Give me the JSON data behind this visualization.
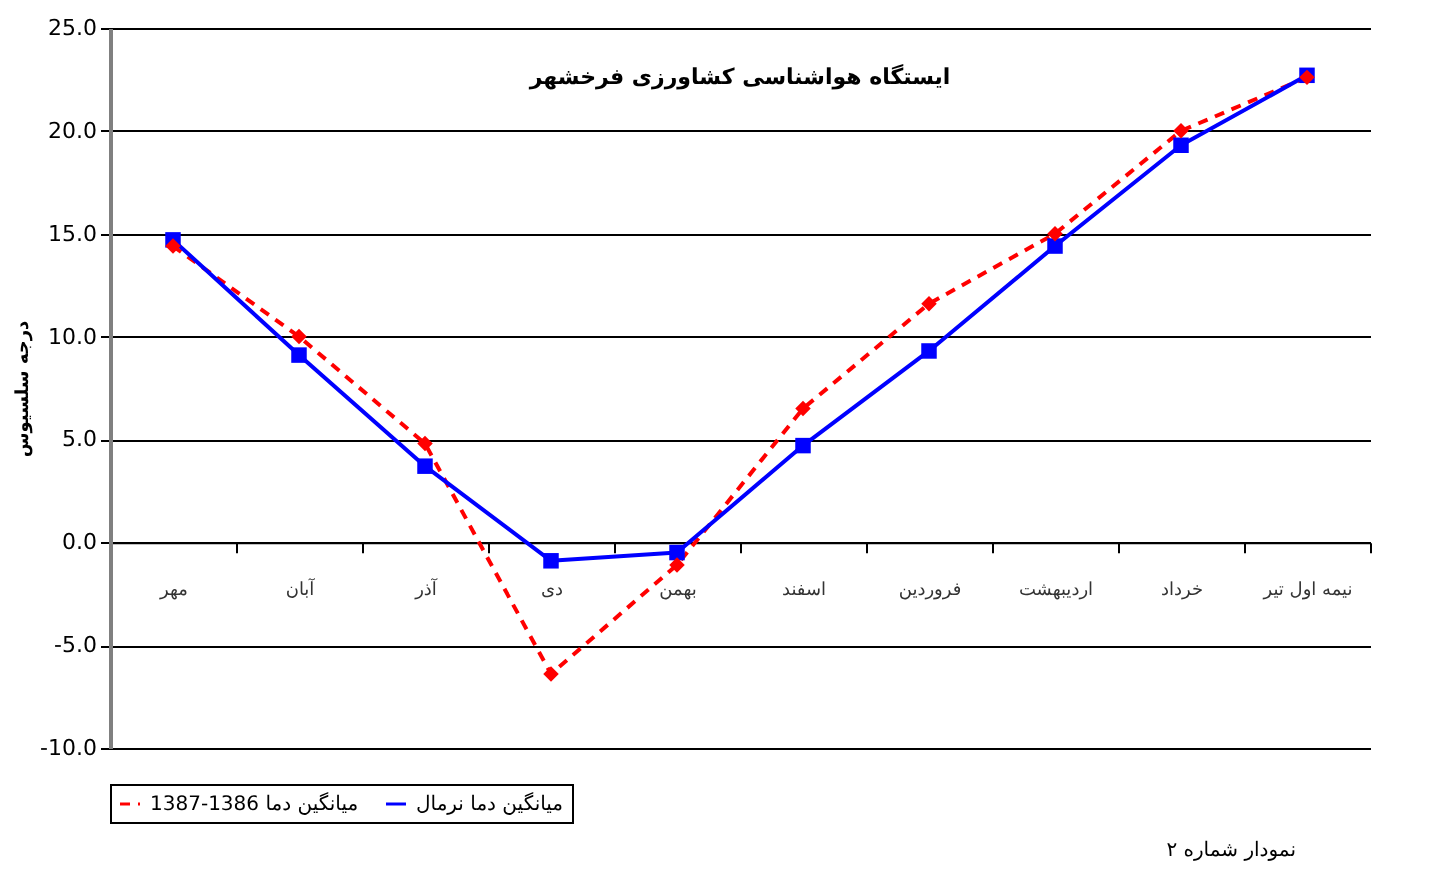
{
  "chart_data": {
    "type": "line",
    "title": "ایستگاه هواشناسی کشاورزی فرخشهر",
    "ylabel": "درجه سلسیوس",
    "annotations": [
      "نمودار شماره ۲"
    ],
    "categories": [
      "مهر",
      "آبان",
      "آذر",
      "دی",
      "بهمن",
      "اسفند",
      "فروردین",
      "اردیبهشت",
      "خرداد",
      "نیمه اول تیر"
    ],
    "series": [
      {
        "name": "میانگین دما 1386-1387",
        "color": "#ff0000",
        "marker": "diamond",
        "line_style": "dashed",
        "values": [
          14.4,
          10.0,
          4.8,
          -6.4,
          -1.1,
          6.5,
          11.6,
          15.0,
          20.0,
          22.6
        ]
      },
      {
        "name": "میانگین دما نرمال",
        "color": "#0000ff",
        "marker": "square",
        "line_style": "solid",
        "values": [
          14.7,
          9.1,
          3.7,
          -0.9,
          -0.5,
          4.7,
          9.3,
          14.4,
          19.3,
          22.7
        ]
      }
    ],
    "ylim": [
      -10,
      25
    ],
    "yticks": [
      {
        "value": -10,
        "label": "-10.0"
      },
      {
        "value": -5,
        "label": "-5.0"
      },
      {
        "value": 0,
        "label": "0.0"
      },
      {
        "value": 5,
        "label": "5.0"
      },
      {
        "value": 10,
        "label": "10.0"
      },
      {
        "value": 15,
        "label": "15.0"
      },
      {
        "value": 20,
        "label": "20.0"
      },
      {
        "value": 25,
        "label": "25.0"
      }
    ],
    "grid": "y",
    "legend": "bottom"
  }
}
